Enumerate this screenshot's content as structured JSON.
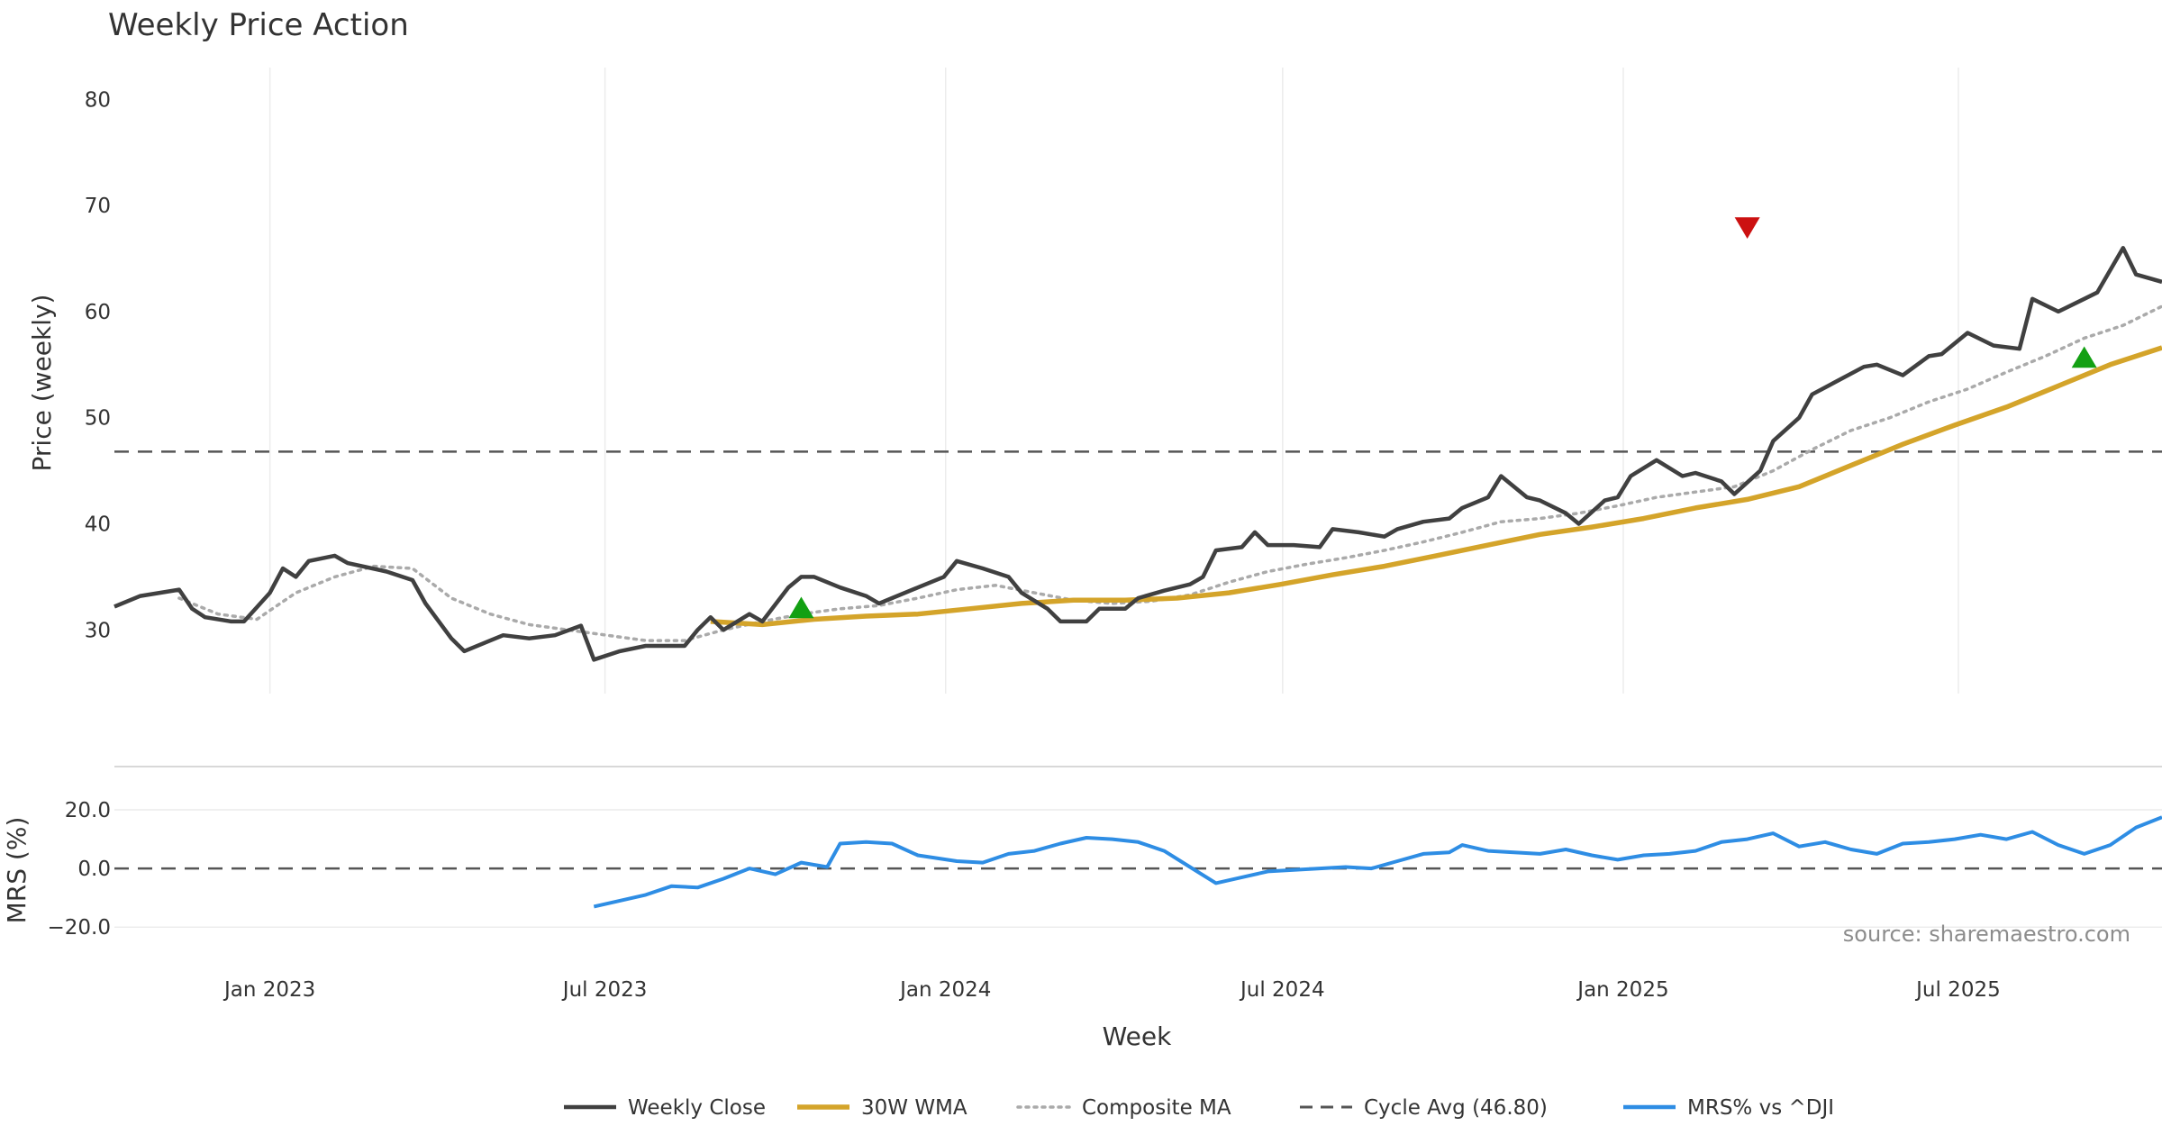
{
  "chart_data": {
    "type": "line",
    "title": "Weekly Price Action",
    "xlabel": "Week",
    "source": "source: sharemaestro.com",
    "colors": {
      "close": "#404040",
      "wma": "#d4a42a",
      "composite": "#aaaaaa",
      "cycle": "#555555",
      "mrs": "#2e8de4",
      "buy": "#13a013",
      "sell": "#cc1111"
    },
    "x_ticks": [
      "Jan 2023",
      "Jul 2023",
      "Jan 2024",
      "Jul 2024",
      "Jan 2025",
      "Jul 2025"
    ],
    "x_tick_dates": [
      "2023-01-01",
      "2023-07-01",
      "2024-01-01",
      "2024-07-01",
      "2025-01-01",
      "2025-07-01"
    ],
    "xlim": [
      "2022-10-09",
      "2025-10-19"
    ],
    "price_panel": {
      "ylabel": "Price (weekly)",
      "ylim": [
        24,
        83
      ],
      "y_ticks": [
        30,
        40,
        50,
        60,
        70,
        80
      ],
      "grid": true,
      "cycle_avg": 46.8
    },
    "mrs_panel": {
      "ylabel": "MRS (%)",
      "ylim": [
        -27,
        32
      ],
      "y_ticks": [
        20,
        0,
        -20
      ],
      "y_tick_labels": [
        "20.0",
        "0.0",
        "−20.0"
      ],
      "zero_line": true
    },
    "legend": {
      "placement": "bottom-center",
      "entries": [
        {
          "key": "close",
          "label": "Weekly Close",
          "style": "solid"
        },
        {
          "key": "wma",
          "label": "30W WMA",
          "style": "solid"
        },
        {
          "key": "composite",
          "label": "Composite MA",
          "style": "dotted"
        },
        {
          "key": "cycle",
          "label": "Cycle Avg (46.80)",
          "style": "dashed"
        },
        {
          "key": "mrs",
          "label": "MRS% vs ^DJI",
          "style": "solid"
        }
      ]
    },
    "series": [
      {
        "name": "Weekly Close",
        "key": "close",
        "panel": "price",
        "points": [
          [
            "2022-10-09",
            32.2
          ],
          [
            "2022-10-23",
            33.2
          ],
          [
            "2022-11-13",
            33.8
          ],
          [
            "2022-11-20",
            32.0
          ],
          [
            "2022-11-27",
            31.2
          ],
          [
            "2022-12-11",
            30.8
          ],
          [
            "2022-12-18",
            30.8
          ],
          [
            "2023-01-01",
            33.5
          ],
          [
            "2023-01-08",
            35.8
          ],
          [
            "2023-01-15",
            35.0
          ],
          [
            "2023-01-22",
            36.5
          ],
          [
            "2023-02-05",
            37.0
          ],
          [
            "2023-02-12",
            36.3
          ],
          [
            "2023-03-05",
            35.5
          ],
          [
            "2023-03-19",
            34.7
          ],
          [
            "2023-03-26",
            32.5
          ],
          [
            "2023-04-09",
            29.2
          ],
          [
            "2023-04-16",
            28.0
          ],
          [
            "2023-04-30",
            29.0
          ],
          [
            "2023-05-07",
            29.5
          ],
          [
            "2023-05-21",
            29.2
          ],
          [
            "2023-06-04",
            29.5
          ],
          [
            "2023-06-18",
            30.4
          ],
          [
            "2023-06-25",
            27.2
          ],
          [
            "2023-07-09",
            28.0
          ],
          [
            "2023-07-23",
            28.5
          ],
          [
            "2023-08-13",
            28.5
          ],
          [
            "2023-08-20",
            30.0
          ],
          [
            "2023-08-27",
            31.2
          ],
          [
            "2023-09-03",
            30.0
          ],
          [
            "2023-09-17",
            31.5
          ],
          [
            "2023-09-24",
            30.8
          ],
          [
            "2023-10-08",
            34.0
          ],
          [
            "2023-10-15",
            35.0
          ],
          [
            "2023-10-22",
            35.0
          ],
          [
            "2023-11-05",
            34.0
          ],
          [
            "2023-11-19",
            33.2
          ],
          [
            "2023-11-26",
            32.5
          ],
          [
            "2023-12-03",
            33.0
          ],
          [
            "2023-12-17",
            34.0
          ],
          [
            "2023-12-31",
            35.0
          ],
          [
            "2024-01-07",
            36.5
          ],
          [
            "2024-01-21",
            35.8
          ],
          [
            "2024-02-04",
            35.0
          ],
          [
            "2024-02-11",
            33.5
          ],
          [
            "2024-02-25",
            32.0
          ],
          [
            "2024-03-03",
            30.8
          ],
          [
            "2024-03-17",
            30.8
          ],
          [
            "2024-03-24",
            32.0
          ],
          [
            "2024-04-07",
            32.0
          ],
          [
            "2024-04-14",
            33.0
          ],
          [
            "2024-04-28",
            33.7
          ],
          [
            "2024-05-12",
            34.3
          ],
          [
            "2024-05-19",
            35.0
          ],
          [
            "2024-05-26",
            37.5
          ],
          [
            "2024-06-09",
            37.8
          ],
          [
            "2024-06-16",
            39.2
          ],
          [
            "2024-06-23",
            38.0
          ],
          [
            "2024-07-07",
            38.0
          ],
          [
            "2024-07-21",
            37.8
          ],
          [
            "2024-07-28",
            39.5
          ],
          [
            "2024-08-11",
            39.2
          ],
          [
            "2024-08-25",
            38.8
          ],
          [
            "2024-09-01",
            39.5
          ],
          [
            "2024-09-15",
            40.2
          ],
          [
            "2024-09-29",
            40.5
          ],
          [
            "2024-10-06",
            41.5
          ],
          [
            "2024-10-20",
            42.5
          ],
          [
            "2024-10-27",
            44.5
          ],
          [
            "2024-11-10",
            42.5
          ],
          [
            "2024-11-17",
            42.2
          ],
          [
            "2024-12-01",
            41.0
          ],
          [
            "2024-12-08",
            40.0
          ],
          [
            "2024-12-22",
            42.2
          ],
          [
            "2024-12-29",
            42.5
          ],
          [
            "2025-01-05",
            44.5
          ],
          [
            "2025-01-19",
            46.0
          ],
          [
            "2025-02-02",
            44.5
          ],
          [
            "2025-02-09",
            44.8
          ],
          [
            "2025-02-23",
            44.0
          ],
          [
            "2025-03-02",
            42.8
          ],
          [
            "2025-03-16",
            45.0
          ],
          [
            "2025-03-23",
            47.8
          ],
          [
            "2025-04-06",
            50.0
          ],
          [
            "2025-04-13",
            52.2
          ],
          [
            "2025-04-27",
            53.5
          ],
          [
            "2025-05-11",
            54.8
          ],
          [
            "2025-05-18",
            55.0
          ],
          [
            "2025-06-01",
            54.0
          ],
          [
            "2025-06-15",
            55.8
          ],
          [
            "2025-06-22",
            56.0
          ],
          [
            "2025-07-06",
            58.0
          ],
          [
            "2025-07-20",
            56.8
          ],
          [
            "2025-08-03",
            56.5
          ],
          [
            "2025-08-10",
            61.2
          ],
          [
            "2025-08-24",
            60.0
          ],
          [
            "2025-09-07",
            61.2
          ],
          [
            "2025-09-14",
            61.8
          ],
          [
            "2025-09-28",
            66.0
          ],
          [
            "2025-10-05",
            63.5
          ],
          [
            "2025-10-19",
            62.8
          ]
        ]
      },
      {
        "name": "30W WMA",
        "key": "wma",
        "panel": "price",
        "points": [
          [
            "2023-08-27",
            30.8
          ],
          [
            "2023-09-24",
            30.5
          ],
          [
            "2023-10-22",
            31.0
          ],
          [
            "2023-11-19",
            31.3
          ],
          [
            "2023-12-17",
            31.5
          ],
          [
            "2024-01-14",
            32.0
          ],
          [
            "2024-02-11",
            32.5
          ],
          [
            "2024-03-10",
            32.8
          ],
          [
            "2024-04-07",
            32.8
          ],
          [
            "2024-05-05",
            33.0
          ],
          [
            "2024-06-02",
            33.5
          ],
          [
            "2024-06-30",
            34.3
          ],
          [
            "2024-07-28",
            35.2
          ],
          [
            "2024-08-25",
            36.0
          ],
          [
            "2024-09-22",
            37.0
          ],
          [
            "2024-10-20",
            38.0
          ],
          [
            "2024-11-17",
            39.0
          ],
          [
            "2024-12-15",
            39.7
          ],
          [
            "2025-01-12",
            40.5
          ],
          [
            "2025-02-09",
            41.5
          ],
          [
            "2025-03-09",
            42.3
          ],
          [
            "2025-04-06",
            43.5
          ],
          [
            "2025-05-04",
            45.5
          ],
          [
            "2025-06-01",
            47.5
          ],
          [
            "2025-06-29",
            49.3
          ],
          [
            "2025-07-27",
            51.0
          ],
          [
            "2025-08-24",
            53.0
          ],
          [
            "2025-09-21",
            55.0
          ],
          [
            "2025-10-19",
            56.6
          ]
        ]
      },
      {
        "name": "Composite MA",
        "key": "composite",
        "panel": "price",
        "points": [
          [
            "2022-11-13",
            33.0
          ],
          [
            "2022-12-04",
            31.5
          ],
          [
            "2022-12-25",
            31.0
          ],
          [
            "2023-01-15",
            33.5
          ],
          [
            "2023-02-05",
            35.0
          ],
          [
            "2023-02-26",
            36.0
          ],
          [
            "2023-03-19",
            35.8
          ],
          [
            "2023-04-09",
            33.0
          ],
          [
            "2023-04-30",
            31.5
          ],
          [
            "2023-05-21",
            30.5
          ],
          [
            "2023-06-11",
            30.0
          ],
          [
            "2023-07-02",
            29.5
          ],
          [
            "2023-07-23",
            29.0
          ],
          [
            "2023-08-13",
            29.0
          ],
          [
            "2023-09-03",
            30.0
          ],
          [
            "2023-09-24",
            30.8
          ],
          [
            "2023-10-15",
            31.5
          ],
          [
            "2023-11-05",
            32.0
          ],
          [
            "2023-11-26",
            32.3
          ],
          [
            "2023-12-17",
            33.0
          ],
          [
            "2024-01-07",
            33.8
          ],
          [
            "2024-01-28",
            34.2
          ],
          [
            "2024-02-18",
            33.5
          ],
          [
            "2024-03-10",
            32.8
          ],
          [
            "2024-03-31",
            32.5
          ],
          [
            "2024-04-21",
            32.7
          ],
          [
            "2024-05-12",
            33.3
          ],
          [
            "2024-06-02",
            34.5
          ],
          [
            "2024-06-23",
            35.5
          ],
          [
            "2024-07-14",
            36.2
          ],
          [
            "2024-08-04",
            36.8
          ],
          [
            "2024-08-25",
            37.5
          ],
          [
            "2024-09-15",
            38.3
          ],
          [
            "2024-10-06",
            39.2
          ],
          [
            "2024-10-27",
            40.2
          ],
          [
            "2024-11-17",
            40.5
          ],
          [
            "2024-12-08",
            41.0
          ],
          [
            "2024-12-29",
            41.7
          ],
          [
            "2025-01-19",
            42.5
          ],
          [
            "2025-02-09",
            43.0
          ],
          [
            "2025-03-02",
            43.5
          ],
          [
            "2025-03-23",
            45.0
          ],
          [
            "2025-04-13",
            47.0
          ],
          [
            "2025-05-04",
            48.8
          ],
          [
            "2025-05-25",
            50.0
          ],
          [
            "2025-06-15",
            51.5
          ],
          [
            "2025-07-06",
            52.7
          ],
          [
            "2025-07-27",
            54.3
          ],
          [
            "2025-08-17",
            55.8
          ],
          [
            "2025-09-07",
            57.5
          ],
          [
            "2025-09-28",
            58.7
          ],
          [
            "2025-10-19",
            60.5
          ]
        ]
      },
      {
        "name": "MRS% vs ^DJI",
        "key": "mrs",
        "panel": "mrs",
        "points": [
          [
            "2023-06-25",
            -13.0
          ],
          [
            "2023-07-09",
            -11.0
          ],
          [
            "2023-07-23",
            -9.0
          ],
          [
            "2023-08-06",
            -6.0
          ],
          [
            "2023-08-20",
            -6.5
          ],
          [
            "2023-09-03",
            -3.5
          ],
          [
            "2023-09-17",
            0.0
          ],
          [
            "2023-10-01",
            -2.0
          ],
          [
            "2023-10-15",
            2.0
          ],
          [
            "2023-10-29",
            0.5
          ],
          [
            "2023-11-05",
            8.5
          ],
          [
            "2023-11-19",
            9.0
          ],
          [
            "2023-12-03",
            8.5
          ],
          [
            "2023-12-17",
            4.5
          ],
          [
            "2024-01-07",
            2.5
          ],
          [
            "2024-01-21",
            2.0
          ],
          [
            "2024-02-04",
            5.0
          ],
          [
            "2024-02-18",
            6.0
          ],
          [
            "2024-03-03",
            8.5
          ],
          [
            "2024-03-17",
            10.5
          ],
          [
            "2024-03-31",
            10.0
          ],
          [
            "2024-04-14",
            9.0
          ],
          [
            "2024-04-28",
            6.0
          ],
          [
            "2024-05-12",
            0.5
          ],
          [
            "2024-05-26",
            -5.0
          ],
          [
            "2024-06-09",
            -3.0
          ],
          [
            "2024-06-23",
            -1.0
          ],
          [
            "2024-07-07",
            -0.5
          ],
          [
            "2024-07-21",
            0.0
          ],
          [
            "2024-08-04",
            0.5
          ],
          [
            "2024-08-18",
            0.0
          ],
          [
            "2024-09-01",
            2.5
          ],
          [
            "2024-09-15",
            5.0
          ],
          [
            "2024-09-29",
            5.5
          ],
          [
            "2024-10-06",
            8.0
          ],
          [
            "2024-10-20",
            6.0
          ],
          [
            "2024-11-03",
            5.5
          ],
          [
            "2024-11-17",
            5.0
          ],
          [
            "2024-12-01",
            6.5
          ],
          [
            "2024-12-15",
            4.5
          ],
          [
            "2024-12-29",
            3.0
          ],
          [
            "2025-01-12",
            4.5
          ],
          [
            "2025-01-26",
            5.0
          ],
          [
            "2025-02-09",
            6.0
          ],
          [
            "2025-02-23",
            9.0
          ],
          [
            "2025-03-09",
            10.0
          ],
          [
            "2025-03-23",
            12.0
          ],
          [
            "2025-04-06",
            7.5
          ],
          [
            "2025-04-20",
            9.0
          ],
          [
            "2025-05-04",
            6.5
          ],
          [
            "2025-05-18",
            5.0
          ],
          [
            "2025-06-01",
            8.5
          ],
          [
            "2025-06-15",
            9.0
          ],
          [
            "2025-06-29",
            10.0
          ],
          [
            "2025-07-13",
            11.5
          ],
          [
            "2025-07-27",
            10.0
          ],
          [
            "2025-08-10",
            12.5
          ],
          [
            "2025-08-24",
            8.0
          ],
          [
            "2025-09-07",
            5.0
          ],
          [
            "2025-09-21",
            8.0
          ],
          [
            "2025-10-05",
            14.0
          ],
          [
            "2025-10-19",
            17.5
          ]
        ]
      }
    ],
    "markers": [
      {
        "type": "buy",
        "date": "2023-10-15",
        "value": 32.0
      },
      {
        "type": "sell",
        "date": "2025-03-09",
        "value": 68.0
      },
      {
        "type": "buy",
        "date": "2025-09-07",
        "value": 55.6
      }
    ]
  }
}
